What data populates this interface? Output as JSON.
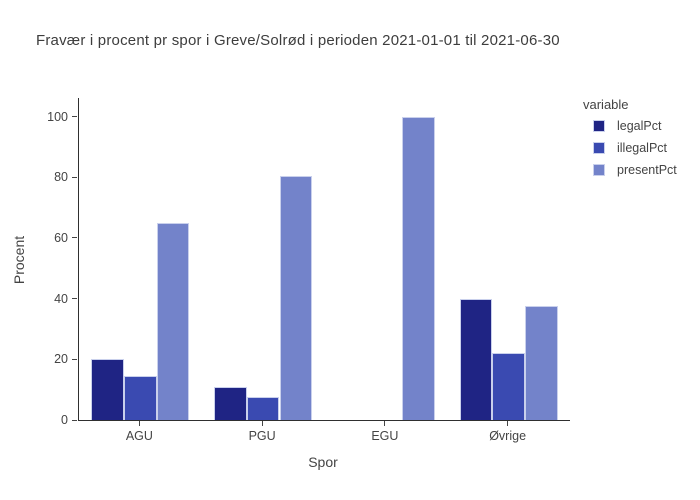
{
  "title": "Fravær i procent pr spor i Greve/Solrød i perioden 2021-01-01 til 2021-06-30",
  "chart_data": {
    "type": "bar",
    "title": "Fravær i procent pr spor i Greve/Solrød i perioden 2021-01-01 til 2021-06-30",
    "xlabel": "Spor",
    "ylabel": "Procent",
    "categories": [
      "AGU",
      "PGU",
      "EGU",
      "Øvrige"
    ],
    "series": [
      {
        "name": "legalPct",
        "color": "#1f2484",
        "values": [
          20,
          11,
          0,
          40
        ]
      },
      {
        "name": "illegalPct",
        "color": "#3a4ab1",
        "values": [
          14.5,
          7.7,
          0,
          22
        ]
      },
      {
        "name": "presentPct",
        "color": "#7383ca",
        "values": [
          65,
          80.5,
          100,
          37.7
        ]
      }
    ],
    "ylim": [
      0,
      106.1
    ],
    "yticks": [
      0,
      20,
      40,
      60,
      80,
      100
    ],
    "legend_title": "variable",
    "legend_position": "right",
    "grid": false,
    "background": "#ffffff",
    "bar_border_color": "#c9d0ec",
    "axis_color": "#444444"
  }
}
